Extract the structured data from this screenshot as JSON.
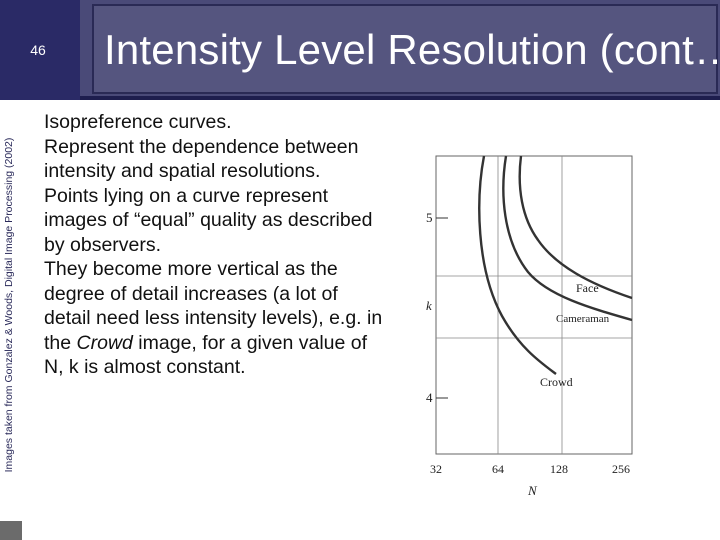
{
  "slide": {
    "number": "46",
    "title": "Intensity Level Resolution (cont…)",
    "side_credit": "Images taken from Gonzalez & Woods, Digital Image Processing (2002)"
  },
  "body": {
    "paragraphs": [
      {
        "text": "Isopreference curves."
      },
      {
        "text": "Represent the dependence between intensity and spatial resolutions."
      },
      {
        "text": "Points lying on a curve represent images of “equal” quality as described by observers."
      },
      {
        "before": "They become more vertical as the degree of detail increases (a lot of detail need less intensity levels), e.g. in the ",
        "emph": "Crowd",
        "after": " image, for a given value of N, k is almost constant."
      }
    ]
  },
  "figure": {
    "y_axis_label": "k",
    "x_axis_label": "N",
    "y_ticks": [
      "5",
      "4"
    ],
    "x_ticks": [
      "32",
      "64",
      "128",
      "256"
    ],
    "curve_labels": {
      "face": "Face",
      "cameraman": "Cameraman",
      "crowd": "Crowd"
    },
    "line_color": "#333333"
  }
}
